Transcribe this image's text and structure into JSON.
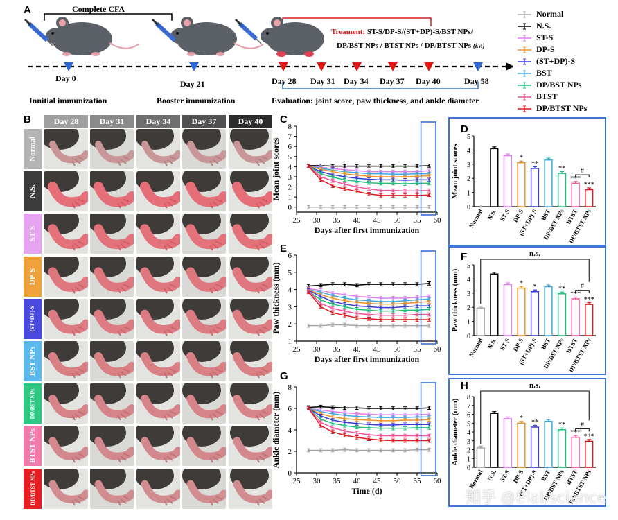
{
  "panel_labels": {
    "A": "A",
    "B": "B",
    "C": "C",
    "D": "D",
    "E": "E",
    "F": "F",
    "G": "G",
    "H": "H"
  },
  "timeline": {
    "complete_cfa": "Complete CFA",
    "treatment_prefix": "Treament:",
    "treatment_line1": " ST-S/DP-S/(ST+DP)-S/BST NPs/",
    "treatment_line2": "DP/BST NPs / BTST NPs / DP/BTST NPs",
    "treatment_iv": "(i.v.)",
    "days": [
      "Day 0",
      "Day 21",
      "Day 28",
      "Day 31",
      "Day 34",
      "Day 37",
      "Day 40",
      "Day 58"
    ],
    "initial": "Innitial immunization",
    "booster": "Booster immunization",
    "evaluation": "Evaluation: joint score, paw thickness, and ankle diameter"
  },
  "legend": {
    "items": [
      {
        "label": "Normal",
        "color": "#a6a6a6"
      },
      {
        "label": "N.S.",
        "color": "#000000"
      },
      {
        "label": "ST-S",
        "color": "#e07ff0"
      },
      {
        "label": "DP-S",
        "color": "#f0952a"
      },
      {
        "label": "(ST+DP)-S",
        "color": "#3a3ad6"
      },
      {
        "label": "BST",
        "color": "#3fa9e0"
      },
      {
        "label": "DP/BST NPs",
        "color": "#1fc07a"
      },
      {
        "label": "BTST",
        "color": "#f0559a"
      },
      {
        "label": "DP/BTST NPs",
        "color": "#e0191e"
      }
    ]
  },
  "photo_grid": {
    "days": [
      "Day 28",
      "Day 31",
      "Day 34",
      "Day 37",
      "Day 40"
    ],
    "day_colors": [
      "#a0a0a0",
      "#8a8a8a",
      "#6e6e6e",
      "#505050",
      "#2c2c2c"
    ],
    "groups": [
      {
        "label": "Normal",
        "color": "#b4b4b4"
      },
      {
        "label": "N.S.",
        "color": "#3c3c3c"
      },
      {
        "label": "ST-S",
        "color": "#e6a4f0"
      },
      {
        "label": "DP-S",
        "color": "#f0a23a"
      },
      {
        "label": "(ST+DP)-S",
        "color": "#4a4ae0"
      },
      {
        "label": "BST NPs",
        "color": "#5ab8ea"
      },
      {
        "label": "DP/BST NPs",
        "color": "#2ec882"
      },
      {
        "label": "BTST NPs",
        "color": "#f27aaa"
      },
      {
        "label": "DP/BTST NPs",
        "color": "#e41e22"
      }
    ]
  },
  "chart_data": [
    {
      "id": "C",
      "type": "line",
      "title": "",
      "xlabel": "Days after first immunization",
      "ylabel": "Mean joint scores",
      "xlim": [
        25,
        60
      ],
      "ylim": [
        -0.5,
        8
      ],
      "xticks": [
        25,
        30,
        35,
        40,
        45,
        50,
        55,
        60
      ],
      "yticks": [
        0,
        1,
        2,
        3,
        4,
        5,
        6,
        7,
        8
      ],
      "x": [
        28,
        31,
        34,
        37,
        40,
        43,
        46,
        49,
        52,
        55,
        58
      ],
      "series": [
        {
          "name": "Normal",
          "values": [
            0,
            0,
            0,
            0,
            0,
            0,
            0,
            0,
            0,
            0,
            0
          ]
        },
        {
          "name": "N.S.",
          "values": [
            4.1,
            4.1,
            4.05,
            4.05,
            4.05,
            4.05,
            4.05,
            4.05,
            4.05,
            4.05,
            4.1
          ]
        },
        {
          "name": "ST-S",
          "values": [
            4.05,
            3.95,
            3.8,
            3.7,
            3.6,
            3.5,
            3.5,
            3.5,
            3.5,
            3.5,
            3.6
          ]
        },
        {
          "name": "BST",
          "values": [
            4.05,
            3.85,
            3.65,
            3.5,
            3.4,
            3.3,
            3.3,
            3.25,
            3.25,
            3.3,
            3.3
          ]
        },
        {
          "name": "DP-S",
          "values": [
            4.05,
            3.75,
            3.5,
            3.3,
            3.15,
            3.05,
            3.0,
            3.0,
            3.0,
            3.05,
            3.1
          ]
        },
        {
          "name": "(ST+DP)-S",
          "values": [
            4.05,
            3.5,
            3.2,
            3.0,
            2.85,
            2.75,
            2.7,
            2.7,
            2.65,
            2.7,
            2.7
          ]
        },
        {
          "name": "DP/BST NPs",
          "values": [
            4.05,
            3.3,
            2.95,
            2.7,
            2.55,
            2.4,
            2.35,
            2.35,
            2.3,
            2.35,
            2.35
          ]
        },
        {
          "name": "BTST",
          "values": [
            4.05,
            3.0,
            2.6,
            2.25,
            2.0,
            1.8,
            1.65,
            1.65,
            1.6,
            1.6,
            1.65
          ]
        },
        {
          "name": "DP/BTST NPs",
          "values": [
            4.05,
            2.7,
            2.1,
            1.8,
            1.55,
            1.3,
            1.15,
            1.15,
            1.15,
            1.15,
            1.2
          ]
        }
      ]
    },
    {
      "id": "D",
      "type": "bar",
      "ylabel": "Mean joint scores",
      "ylim": [
        0,
        5
      ],
      "yticks": [
        0,
        1,
        2,
        3,
        4,
        5
      ],
      "categories": [
        "Normal",
        "N.S.",
        "ST-S",
        "DP-S",
        "(ST+DP)-S",
        "BST",
        "DP/BST NPs",
        "BTST",
        "DP/BTST NPs"
      ],
      "values": [
        0,
        4.1,
        3.6,
        3.1,
        2.7,
        3.3,
        2.35,
        1.65,
        1.2
      ],
      "significance": [
        "",
        "",
        "",
        "*",
        "**",
        "",
        "**",
        "***",
        "***"
      ],
      "bracket_label": "#"
    },
    {
      "id": "E",
      "type": "line",
      "xlabel": "Days after first immunization",
      "ylabel": "Paw thickness (mm)",
      "xlim": [
        25,
        60
      ],
      "ylim": [
        1,
        6
      ],
      "xticks": [
        25,
        30,
        35,
        40,
        45,
        50,
        55,
        60
      ],
      "yticks": [
        1,
        2,
        3,
        4,
        5,
        6
      ],
      "x": [
        28,
        31,
        34,
        37,
        40,
        43,
        46,
        49,
        52,
        55,
        58
      ],
      "series": [
        {
          "name": "Normal",
          "values": [
            1.9,
            1.9,
            1.95,
            1.95,
            1.9,
            1.9,
            1.9,
            1.9,
            1.9,
            1.9,
            1.9
          ]
        },
        {
          "name": "N.S.",
          "values": [
            4.2,
            4.25,
            4.3,
            4.3,
            4.25,
            4.3,
            4.3,
            4.3,
            4.3,
            4.3,
            4.35
          ]
        },
        {
          "name": "ST-S",
          "values": [
            4.05,
            3.95,
            3.8,
            3.7,
            3.6,
            3.55,
            3.5,
            3.5,
            3.5,
            3.55,
            3.6
          ]
        },
        {
          "name": "BST",
          "values": [
            4.0,
            3.85,
            3.65,
            3.5,
            3.4,
            3.35,
            3.3,
            3.3,
            3.35,
            3.4,
            3.45
          ]
        },
        {
          "name": "DP-S",
          "values": [
            4.0,
            3.7,
            3.5,
            3.35,
            3.25,
            3.2,
            3.15,
            3.15,
            3.2,
            3.25,
            3.3
          ]
        },
        {
          "name": "(ST+DP)-S",
          "values": [
            3.95,
            3.6,
            3.3,
            3.15,
            3.05,
            3.0,
            2.95,
            2.95,
            3.0,
            3.05,
            3.05
          ]
        },
        {
          "name": "DP/BST NPs",
          "values": [
            3.9,
            3.4,
            3.15,
            3.0,
            2.85,
            2.8,
            2.75,
            2.75,
            2.8,
            2.8,
            2.85
          ]
        },
        {
          "name": "BTST",
          "values": [
            3.9,
            3.2,
            2.9,
            2.75,
            2.6,
            2.55,
            2.5,
            2.5,
            2.5,
            2.55,
            2.55
          ]
        },
        {
          "name": "DP/BTST NPs",
          "values": [
            3.85,
            3.0,
            2.65,
            2.5,
            2.35,
            2.3,
            2.25,
            2.25,
            2.25,
            2.25,
            2.25
          ]
        }
      ]
    },
    {
      "id": "F",
      "type": "bar",
      "ylabel": "Paw thickness (mm)",
      "ylim": [
        0,
        5
      ],
      "yticks": [
        0,
        1,
        2,
        3,
        4,
        5
      ],
      "categories": [
        "Normal",
        "N.S.",
        "ST-S",
        "DP-S",
        "(ST+DP)-S",
        "BST",
        "DP/BST NPs",
        "BTST",
        "DP/BTST NPs"
      ],
      "values": [
        1.95,
        4.35,
        3.6,
        3.35,
        3.1,
        3.45,
        2.95,
        2.6,
        2.2
      ],
      "significance": [
        "",
        "",
        "",
        "*",
        "*",
        "",
        "**",
        "***",
        "***"
      ],
      "bracket_label": "#",
      "ns_label": "n.s."
    },
    {
      "id": "G",
      "type": "line",
      "xlabel": "Time (d)",
      "ylabel": "Ankle diameter (mm)",
      "xlim": [
        25,
        60
      ],
      "ylim": [
        0,
        8
      ],
      "xticks": [
        25,
        30,
        35,
        40,
        45,
        50,
        55,
        60
      ],
      "yticks": [
        0,
        2,
        4,
        6,
        8
      ],
      "x": [
        28,
        31,
        34,
        37,
        40,
        43,
        46,
        49,
        52,
        55,
        58
      ],
      "series": [
        {
          "name": "Normal",
          "values": [
            2.1,
            2.1,
            2.1,
            2.15,
            2.1,
            2.1,
            2.1,
            2.1,
            2.1,
            2.15,
            2.15
          ]
        },
        {
          "name": "N.S.",
          "values": [
            6.1,
            6.15,
            6.1,
            6.05,
            6.05,
            6.0,
            6.0,
            6.0,
            6.0,
            6.0,
            6.05
          ]
        },
        {
          "name": "ST-S",
          "values": [
            6.0,
            5.85,
            5.7,
            5.6,
            5.5,
            5.45,
            5.4,
            5.4,
            5.4,
            5.4,
            5.45
          ]
        },
        {
          "name": "BST",
          "values": [
            6.0,
            5.7,
            5.5,
            5.35,
            5.25,
            5.2,
            5.15,
            5.15,
            5.15,
            5.2,
            5.2
          ]
        },
        {
          "name": "DP-S",
          "values": [
            6.0,
            5.5,
            5.2,
            5.05,
            4.95,
            4.9,
            4.85,
            4.85,
            4.9,
            4.9,
            4.95
          ]
        },
        {
          "name": "(ST+DP)-S",
          "values": [
            6.0,
            5.3,
            4.9,
            4.7,
            4.6,
            4.5,
            4.45,
            4.45,
            4.5,
            4.5,
            4.5
          ]
        },
        {
          "name": "DP/BST NPs",
          "values": [
            6.0,
            5.0,
            4.6,
            4.4,
            4.25,
            4.2,
            4.15,
            4.15,
            4.15,
            4.2,
            4.2
          ]
        },
        {
          "name": "BTST",
          "values": [
            6.0,
            4.7,
            4.2,
            3.9,
            3.7,
            3.55,
            3.45,
            3.45,
            3.45,
            3.45,
            3.45
          ]
        },
        {
          "name": "DP/BTST NPs",
          "values": [
            6.0,
            4.4,
            3.8,
            3.5,
            3.3,
            3.15,
            3.05,
            3.0,
            3.0,
            3.0,
            3.0
          ]
        }
      ]
    },
    {
      "id": "H",
      "type": "bar",
      "ylabel": "Ankle diameter (mm)",
      "ylim": [
        0,
        8
      ],
      "yticks": [
        0,
        1,
        2,
        3,
        4,
        5,
        6,
        7,
        8
      ],
      "categories": [
        "Normal",
        "N.S.",
        "ST-S",
        "DP-S",
        "(ST+DP)-S",
        "BST",
        "DP/BST NPs",
        "BTST",
        "DP/BTST NPs"
      ],
      "values": [
        2.2,
        6.1,
        5.5,
        5.0,
        4.55,
        5.2,
        4.25,
        3.4,
        2.95
      ],
      "significance": [
        "",
        "",
        "",
        "*",
        "**",
        "",
        "**",
        "***",
        "***"
      ],
      "bracket_label": "#",
      "ns_label": "n.s."
    }
  ],
  "watermark": "知乎 @Elabscience"
}
